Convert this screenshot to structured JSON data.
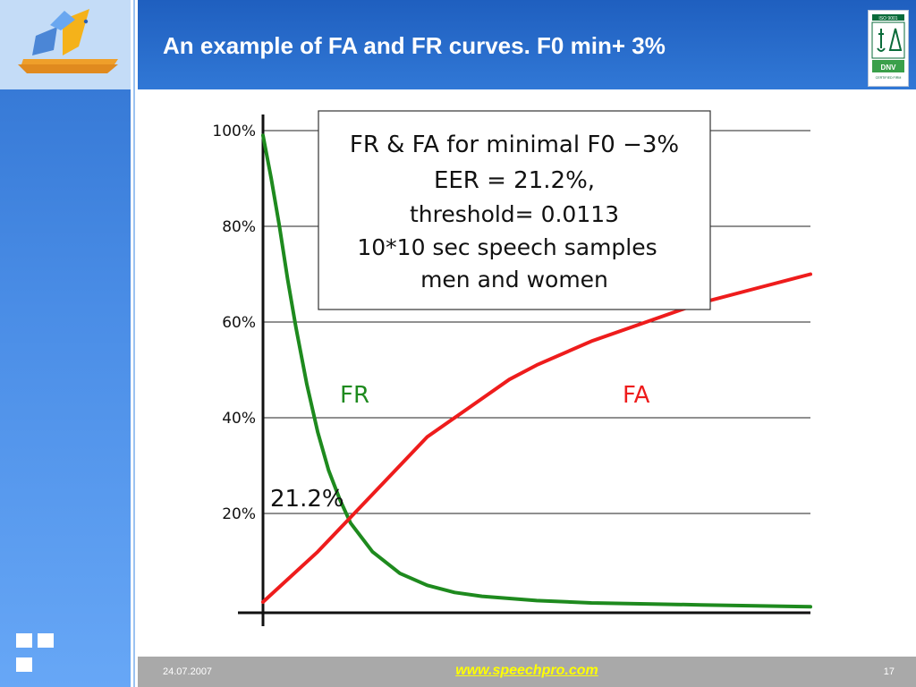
{
  "slide": {
    "title": "An example of FA and FR curves. F0 min+ 3%",
    "date": "24.07.2007",
    "url": "www.speechpro.com",
    "page_number": "17",
    "iso_logo": {
      "top": "ISO 9001",
      "mid": "DNV",
      "bottom": "CERTIFIED FIRM"
    }
  },
  "colors": {
    "header": "#2d6fd0",
    "fr_curve": "#1e8a1e",
    "fa_curve": "#ee1c1c",
    "footer_url": "#ffff00"
  },
  "chart_data": {
    "type": "line",
    "ylim": [
      0,
      100
    ],
    "y_ticks": [
      "100%",
      "80%",
      "60%",
      "40%",
      "20%"
    ],
    "grid": true,
    "series": [
      {
        "name": "FR",
        "color": "#1e8a1e",
        "values": [
          [
            0,
            99
          ],
          [
            0.015,
            90
          ],
          [
            0.03,
            80
          ],
          [
            0.045,
            69
          ],
          [
            0.06,
            59
          ],
          [
            0.08,
            47
          ],
          [
            0.1,
            37
          ],
          [
            0.12,
            29
          ],
          [
            0.14,
            23
          ],
          [
            0.16,
            18
          ],
          [
            0.2,
            12
          ],
          [
            0.25,
            7.5
          ],
          [
            0.3,
            5
          ],
          [
            0.35,
            3.5
          ],
          [
            0.4,
            2.7
          ],
          [
            0.5,
            1.8
          ],
          [
            0.6,
            1.3
          ],
          [
            0.7,
            1.1
          ],
          [
            0.8,
            0.9
          ],
          [
            0.9,
            0.7
          ],
          [
            1.0,
            0.5
          ]
        ]
      },
      {
        "name": "FA",
        "color": "#ee1c1c",
        "values": [
          [
            0,
            1.5
          ],
          [
            0.1,
            12
          ],
          [
            0.2,
            24
          ],
          [
            0.3,
            36
          ],
          [
            0.4,
            44
          ],
          [
            0.45,
            48
          ],
          [
            0.5,
            51
          ],
          [
            0.6,
            56
          ],
          [
            0.7,
            60
          ],
          [
            0.8,
            64
          ],
          [
            0.9,
            67
          ],
          [
            1.0,
            70
          ]
        ]
      }
    ],
    "annotations": [
      {
        "text": "21.2%"
      }
    ],
    "legend_box": {
      "lines": [
        "FR & FA for minimal F0 −3%",
        "EER = 21.2%,",
        "threshold= 0.0113",
        "10*10 sec speech samples",
        "men and women"
      ]
    }
  }
}
